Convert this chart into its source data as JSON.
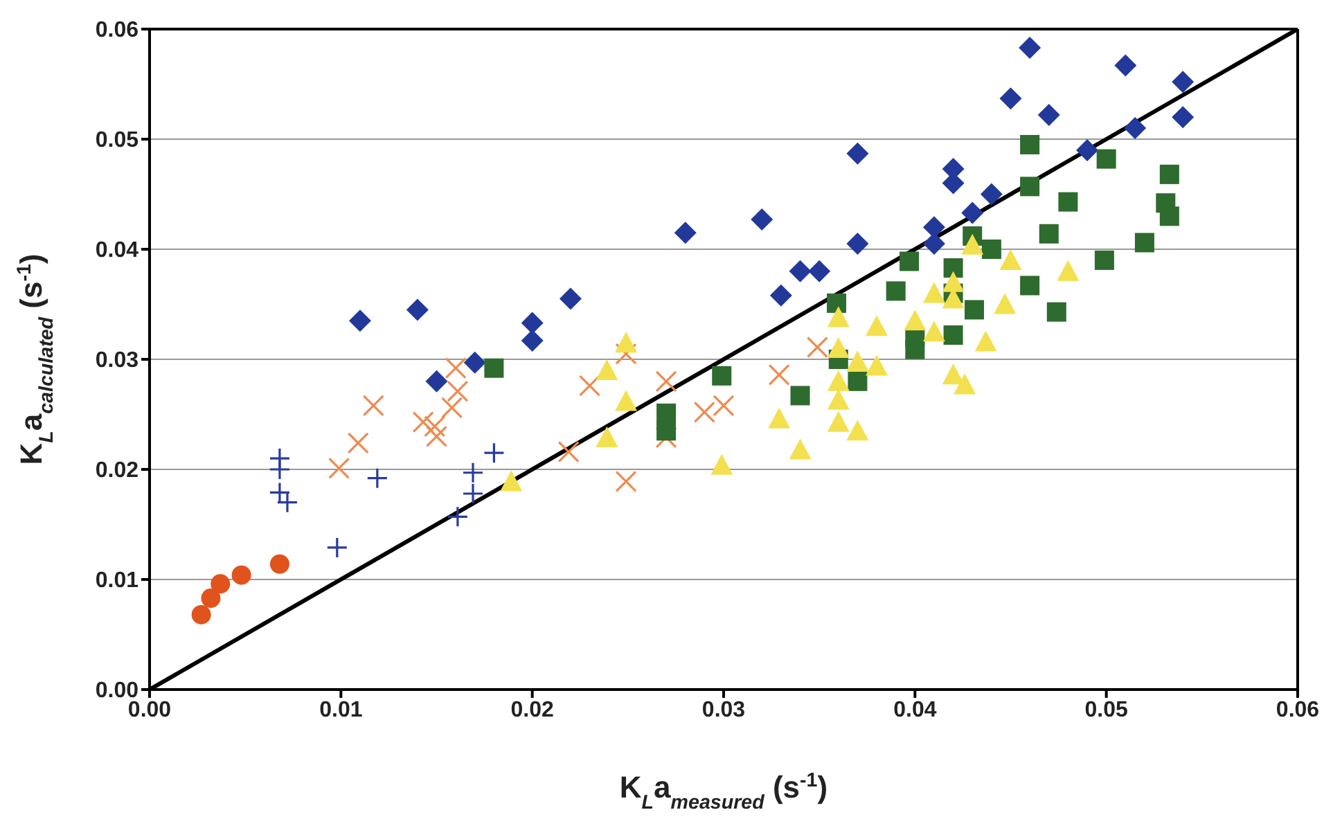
{
  "chart_data": {
    "type": "scatter",
    "xlabel": "K$_{L}$a$_{measured}$ (s$^{-1}$)",
    "ylabel": "K$_{L}$a$_{calculated}$ (s$^{-1}$)",
    "xlim": [
      0,
      0.06
    ],
    "ylim": [
      0,
      0.06
    ],
    "xticks": [
      {
        "value": 0,
        "label": "0.00"
      },
      {
        "value": 0.01,
        "label": "0.01"
      },
      {
        "value": 0.02,
        "label": "0.02"
      },
      {
        "value": 0.03,
        "label": "0.03"
      },
      {
        "value": 0.04,
        "label": "0.04"
      },
      {
        "value": 0.05,
        "label": "0.05"
      },
      {
        "value": 0.06,
        "label": "0.06"
      }
    ],
    "yticks": [
      {
        "value": 0,
        "label": "0.00"
      },
      {
        "value": 0.01,
        "label": "0.01"
      },
      {
        "value": 0.02,
        "label": "0.02"
      },
      {
        "value": 0.03,
        "label": "0.03"
      },
      {
        "value": 0.04,
        "label": "0.04"
      },
      {
        "value": 0.05,
        "label": "0.05"
      },
      {
        "value": 0.06,
        "label": "0.06"
      }
    ],
    "grid": "y",
    "series": [
      {
        "marker": "diamond",
        "color": "#22399a",
        "x": [
          0.011,
          0.014,
          0.015,
          0.017,
          0.02,
          0.02,
          0.022,
          0.028,
          0.032,
          0.033,
          0.034,
          0.035,
          0.037,
          0.037,
          0.041,
          0.041,
          0.042,
          0.042,
          0.043,
          0.044,
          0.045,
          0.046,
          0.047,
          0.049,
          0.051,
          0.0515,
          0.054,
          0.054
        ],
        "values": [
          0.0335,
          0.0345,
          0.028,
          0.0297,
          0.0333,
          0.0317,
          0.0355,
          0.0415,
          0.0427,
          0.0358,
          0.038,
          0.038,
          0.0487,
          0.0405,
          0.042,
          0.0405,
          0.0473,
          0.046,
          0.0433,
          0.045,
          0.0537,
          0.0583,
          0.0522,
          0.049,
          0.0567,
          0.051,
          0.0552,
          0.052
        ]
      },
      {
        "marker": "x",
        "color": "#ee8a4e",
        "x": [
          0.0099,
          0.0109,
          0.0117,
          0.0143,
          0.0149,
          0.015,
          0.0158,
          0.0161,
          0.016,
          0.0219,
          0.023,
          0.0249,
          0.0249,
          0.027,
          0.027,
          0.029,
          0.03,
          0.0329,
          0.0349
        ],
        "values": [
          0.0201,
          0.0224,
          0.0258,
          0.0243,
          0.0239,
          0.023,
          0.0256,
          0.0271,
          0.0292,
          0.0216,
          0.0276,
          0.0305,
          0.0189,
          0.028,
          0.0229,
          0.0252,
          0.0258,
          0.0286,
          0.0311
        ]
      },
      {
        "marker": "cross",
        "color": "#2a3b9e",
        "x": [
          0.0068,
          0.0068,
          0.0068,
          0.0072,
          0.0098,
          0.0119,
          0.0161,
          0.0169,
          0.0169,
          0.018
        ],
        "values": [
          0.021,
          0.02,
          0.0179,
          0.017,
          0.0129,
          0.0192,
          0.0157,
          0.0197,
          0.0178,
          0.0215
        ]
      },
      {
        "marker": "circle",
        "color": "#e0531d",
        "x": [
          0.0027,
          0.0032,
          0.0037,
          0.0048,
          0.0068
        ],
        "values": [
          0.0068,
          0.0083,
          0.0096,
          0.0104,
          0.0114
        ]
      },
      {
        "marker": "square",
        "color": "#2e6b2e",
        "x": [
          0.018,
          0.027,
          0.027,
          0.0299,
          0.034,
          0.0359,
          0.036,
          0.037,
          0.039,
          0.0397,
          0.04,
          0.04,
          0.042,
          0.042,
          0.042,
          0.043,
          0.0431,
          0.044,
          0.046,
          0.046,
          0.046,
          0.047,
          0.0474,
          0.048,
          0.0499,
          0.05,
          0.052,
          0.0531,
          0.0533,
          0.0533
        ],
        "values": [
          0.0292,
          0.0251,
          0.0235,
          0.0285,
          0.0267,
          0.0351,
          0.03,
          0.028,
          0.0362,
          0.0389,
          0.0309,
          0.032,
          0.0383,
          0.0322,
          0.036,
          0.0412,
          0.0345,
          0.04,
          0.0495,
          0.0457,
          0.0367,
          0.0414,
          0.0343,
          0.0443,
          0.039,
          0.0482,
          0.0406,
          0.0442,
          0.0468,
          0.043
        ]
      },
      {
        "marker": "triangle",
        "color": "#f3e04e",
        "x": [
          0.0189,
          0.0239,
          0.0239,
          0.0249,
          0.0249,
          0.0299,
          0.0329,
          0.034,
          0.036,
          0.036,
          0.036,
          0.036,
          0.036,
          0.037,
          0.037,
          0.038,
          0.038,
          0.04,
          0.041,
          0.041,
          0.042,
          0.042,
          0.042,
          0.0426,
          0.043,
          0.0437,
          0.0447,
          0.045,
          0.048
        ],
        "values": [
          0.0189,
          0.029,
          0.0229,
          0.0315,
          0.0262,
          0.0204,
          0.0246,
          0.0218,
          0.0338,
          0.031,
          0.028,
          0.0263,
          0.0243,
          0.0298,
          0.0235,
          0.033,
          0.0294,
          0.0335,
          0.036,
          0.0325,
          0.037,
          0.0355,
          0.0286,
          0.0277,
          0.0404,
          0.0316,
          0.035,
          0.039,
          0.038
        ]
      },
      {
        "type": "line",
        "color": "#000000",
        "x": [
          0,
          0.06
        ],
        "values": [
          0,
          0.06
        ]
      }
    ]
  }
}
